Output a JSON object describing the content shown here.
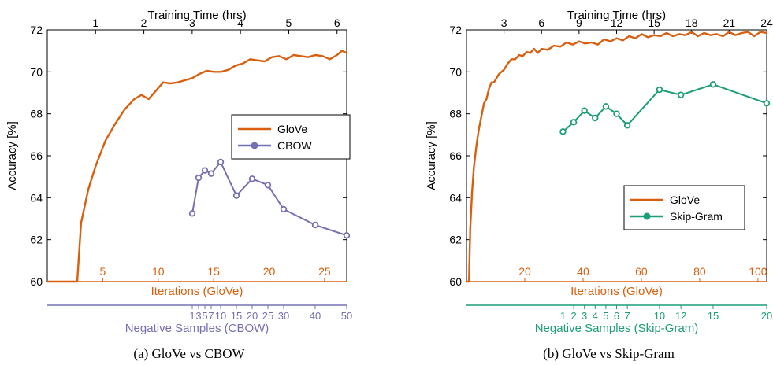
{
  "colors": {
    "glove": "#d95f0e",
    "cbow": "#7570b3",
    "skipgram": "#1b9e77",
    "axis": "#000000"
  },
  "chart_data": [
    {
      "type": "line",
      "caption": "(a)  GloVe vs CBOW",
      "ylabel": "Accuracy [%]",
      "ylim": [
        60,
        72
      ],
      "y_ticks": [
        60,
        62,
        64,
        66,
        68,
        70,
        72
      ],
      "top_axis": {
        "label": "Training Time (hrs)",
        "range": [
          0,
          6.2
        ],
        "ticks": [
          1,
          2,
          3,
          4,
          5,
          6
        ]
      },
      "glove_axis": {
        "label": "Iterations (GloVe)",
        "range": [
          0,
          27
        ],
        "ticks": [
          5,
          10,
          15,
          20,
          25
        ]
      },
      "neg_axis": {
        "label": "Negative Samples (CBOW)",
        "range": [
          -45,
          50
        ],
        "ticks": [
          1,
          3,
          5,
          7,
          10,
          15,
          20,
          25,
          30,
          40,
          50
        ],
        "tick_labels": [
          "1",
          "3",
          "5",
          "7",
          "10",
          "15",
          "20",
          "25",
          "30",
          "40",
          "50"
        ]
      },
      "legend": {
        "position": "right",
        "entries": [
          "GloVe",
          "CBOW"
        ]
      },
      "series": [
        {
          "name": "GloVe",
          "axis": "top",
          "marker": "none",
          "x": [
            0.62,
            0.7,
            0.85,
            1.0,
            1.2,
            1.4,
            1.6,
            1.8,
            1.95,
            2.1,
            2.25,
            2.4,
            2.55,
            2.7,
            2.85,
            3.0,
            3.15,
            3.3,
            3.45,
            3.6,
            3.75,
            3.9,
            4.05,
            4.2,
            4.35,
            4.5,
            4.65,
            4.8,
            4.95,
            5.1,
            5.25,
            5.4,
            5.55,
            5.7,
            5.85,
            6.0,
            6.1,
            6.2
          ],
          "y": [
            60.0,
            62.8,
            64.4,
            65.5,
            66.7,
            67.5,
            68.2,
            68.7,
            68.9,
            68.7,
            69.1,
            69.5,
            69.45,
            69.5,
            69.6,
            69.7,
            69.9,
            70.05,
            70.0,
            70.0,
            70.1,
            70.3,
            70.4,
            70.6,
            70.55,
            70.5,
            70.7,
            70.75,
            70.6,
            70.8,
            70.75,
            70.7,
            70.8,
            70.75,
            70.6,
            70.8,
            71.0,
            70.9
          ]
        },
        {
          "name": "CBOW",
          "axis": "negative_samples",
          "marker": "circle",
          "x": [
            1,
            3,
            5,
            7,
            10,
            15,
            20,
            25,
            30,
            40,
            50
          ],
          "y": [
            63.25,
            64.95,
            65.3,
            65.15,
            65.7,
            64.1,
            64.9,
            64.6,
            63.45,
            62.7,
            62.2
          ]
        }
      ]
    },
    {
      "type": "line",
      "caption": "(b)  GloVe vs Skip-Gram",
      "ylabel": "Accuracy [%]",
      "ylim": [
        60,
        72
      ],
      "y_ticks": [
        60,
        62,
        64,
        66,
        68,
        70,
        72
      ],
      "top_axis": {
        "label": "Training Time (hrs)",
        "range": [
          0,
          24
        ],
        "ticks": [
          3,
          6,
          9,
          12,
          15,
          18,
          21,
          24
        ]
      },
      "glove_axis": {
        "label": "Iterations (GloVe)",
        "range": [
          0,
          103
        ],
        "ticks": [
          20,
          40,
          60,
          80,
          100
        ]
      },
      "neg_axis": {
        "label": "Negative Samples (Skip-Gram)",
        "range": [
          -8,
          20
        ],
        "ticks": [
          1,
          2,
          3,
          4,
          5,
          6,
          7,
          10,
          12,
          15,
          20
        ],
        "tick_labels": [
          "1",
          "2",
          "3",
          "4",
          "5",
          "6",
          "7",
          "10",
          "12",
          "15",
          "20"
        ]
      },
      "legend": {
        "position": "bottom-right",
        "entries": [
          "GloVe",
          "Skip-Gram"
        ]
      },
      "series": [
        {
          "name": "GloVe",
          "axis": "top",
          "marker": "none",
          "x": [
            0.2,
            0.3,
            0.45,
            0.6,
            0.8,
            1.0,
            1.2,
            1.4,
            1.6,
            1.8,
            2.0,
            2.2,
            2.4,
            2.6,
            2.8,
            3.0,
            3.3,
            3.6,
            3.9,
            4.2,
            4.5,
            4.8,
            5.1,
            5.4,
            5.7,
            6.0,
            6.5,
            7.0,
            7.5,
            8.0,
            8.5,
            9.0,
            9.5,
            10.0,
            10.5,
            11.0,
            11.5,
            12.0,
            12.5,
            13.0,
            13.5,
            14.0,
            14.5,
            15.0,
            15.5,
            16.0,
            16.5,
            17.0,
            17.5,
            18.0,
            18.5,
            19.0,
            19.5,
            20.0,
            20.5,
            21.0,
            21.5,
            22.0,
            22.5,
            23.0,
            23.5,
            24.0
          ],
          "y": [
            60.0,
            62.5,
            64.3,
            65.5,
            66.5,
            67.3,
            67.9,
            68.5,
            68.7,
            69.2,
            69.5,
            69.5,
            69.7,
            69.9,
            70.0,
            70.1,
            70.4,
            70.6,
            70.6,
            70.8,
            70.75,
            70.95,
            70.9,
            71.1,
            70.9,
            71.1,
            71.05,
            71.25,
            71.2,
            71.4,
            71.3,
            71.45,
            71.35,
            71.4,
            71.3,
            71.55,
            71.45,
            71.6,
            71.5,
            71.7,
            71.6,
            71.8,
            71.65,
            71.75,
            71.7,
            71.85,
            71.7,
            71.8,
            71.75,
            71.9,
            71.7,
            71.85,
            71.75,
            71.8,
            71.7,
            71.9,
            71.75,
            71.85,
            71.9,
            71.7,
            71.9,
            71.85
          ]
        },
        {
          "name": "Skip-Gram",
          "axis": "negative_samples",
          "marker": "circle",
          "x": [
            1,
            2,
            3,
            4,
            5,
            6,
            7,
            10,
            12,
            15,
            20
          ],
          "y": [
            67.15,
            67.6,
            68.15,
            67.8,
            68.35,
            68.0,
            67.45,
            69.15,
            68.9,
            69.4,
            68.5
          ]
        }
      ]
    }
  ]
}
